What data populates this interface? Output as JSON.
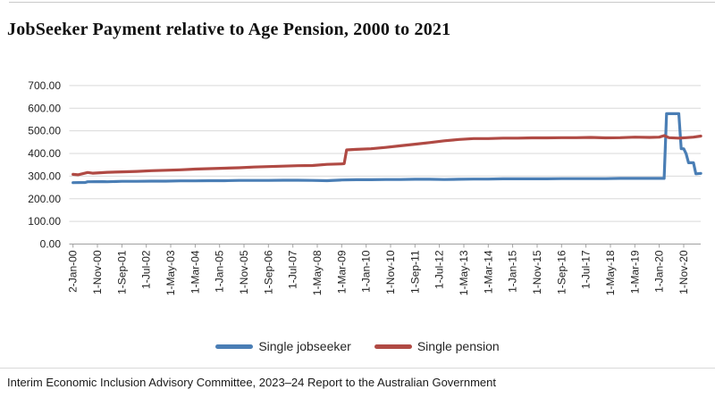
{
  "page": {
    "title": "JobSeeker Payment relative to Age Pension, 2000 to 2021"
  },
  "footer": {
    "text": "Interim Economic Inclusion Advisory Committee, 2023–24 Report to the Australian Government"
  },
  "chart_data": {
    "type": "line",
    "title": "JobSeeker Payment relative to Age Pension, 2000 to 2021",
    "xlabel": "",
    "ylabel": "",
    "ylim": [
      0,
      700
    ],
    "grid": true,
    "legend_position": "bottom",
    "y_axis": {
      "ticks": [
        {
          "value": 0,
          "label": "0.00"
        },
        {
          "value": 100,
          "label": "100.00"
        },
        {
          "value": 200,
          "label": "200.00"
        },
        {
          "value": 300,
          "label": "300.00"
        },
        {
          "value": 400,
          "label": "400.00"
        },
        {
          "value": 500,
          "label": "500.00"
        },
        {
          "value": 600,
          "label": "600.00"
        },
        {
          "value": 700,
          "label": "700.00"
        }
      ]
    },
    "x_axis": {
      "start": "Jan-2000",
      "end": "Jun-2021",
      "tick_interval_months": 10,
      "tick_labels": [
        "2-Jan-00",
        "1-Nov-00",
        "1-Sep-01",
        "1-Jul-02",
        "1-May-03",
        "1-Mar-04",
        "1-Jan-05",
        "1-Nov-05",
        "1-Sep-06",
        "1-Jul-07",
        "1-May-08",
        "1-Mar-09",
        "1-Jan-10",
        "1-Nov-10",
        "1-Sep-11",
        "1-Jul-12",
        "1-May-13",
        "1-Mar-14",
        "1-Jan-15",
        "1-Nov-15",
        "1-Sep-16",
        "1-Jul-17",
        "1-May-18",
        "1-Mar-19",
        "1-Jan-20",
        "1-Nov-20"
      ]
    },
    "series": [
      {
        "name": "Single jobseeker",
        "color": "#4a7eb5",
        "points": [
          [
            "Jan-00",
            271
          ],
          [
            "Jun-00",
            272
          ],
          [
            "Jul-00",
            275
          ],
          [
            "Jan-01",
            276
          ],
          [
            "Mar-01",
            275
          ],
          [
            "Sep-01",
            277
          ],
          [
            "Mar-02",
            277
          ],
          [
            "Sep-02",
            278
          ],
          [
            "Mar-03",
            278
          ],
          [
            "Sep-03",
            279
          ],
          [
            "Mar-04",
            279
          ],
          [
            "Sep-04",
            280
          ],
          [
            "Mar-05",
            280
          ],
          [
            "Sep-05",
            281
          ],
          [
            "Mar-06",
            281
          ],
          [
            "Sep-06",
            281
          ],
          [
            "Mar-07",
            282
          ],
          [
            "Sep-07",
            282
          ],
          [
            "Mar-08",
            281
          ],
          [
            "Sep-08",
            280
          ],
          [
            "Mar-09",
            283
          ],
          [
            "Sep-09",
            284
          ],
          [
            "Mar-10",
            284
          ],
          [
            "Sep-10",
            285
          ],
          [
            "Mar-11",
            285
          ],
          [
            "Sep-11",
            286
          ],
          [
            "Mar-12",
            286
          ],
          [
            "Sep-12",
            285
          ],
          [
            "Mar-13",
            286
          ],
          [
            "Sep-13",
            287
          ],
          [
            "Mar-14",
            287
          ],
          [
            "Sep-14",
            288
          ],
          [
            "Mar-15",
            288
          ],
          [
            "Sep-15",
            288
          ],
          [
            "Mar-16",
            288
          ],
          [
            "Sep-16",
            289
          ],
          [
            "Mar-17",
            289
          ],
          [
            "Sep-17",
            289
          ],
          [
            "Mar-18",
            289
          ],
          [
            "Sep-18",
            290
          ],
          [
            "Mar-19",
            290
          ],
          [
            "Sep-19",
            290
          ],
          [
            "Mar-20",
            290
          ],
          [
            "Apr-20",
            576
          ],
          [
            "Sep-20",
            576
          ],
          [
            "Oct-20",
            421
          ],
          [
            "Nov-20",
            421
          ],
          [
            "Dec-20",
            399
          ],
          [
            "Jan-21",
            359
          ],
          [
            "Mar-21",
            359
          ],
          [
            "Apr-21",
            310
          ],
          [
            "Jun-21",
            312
          ]
        ]
      },
      {
        "name": "Single pension",
        "color": "#b04a44",
        "points": [
          [
            "Jan-00",
            308
          ],
          [
            "Mar-00",
            306
          ],
          [
            "Jul-00",
            316
          ],
          [
            "Sep-00",
            313
          ],
          [
            "Mar-01",
            317
          ],
          [
            "Sep-01",
            319
          ],
          [
            "Mar-02",
            321
          ],
          [
            "Sep-02",
            324
          ],
          [
            "Mar-03",
            326
          ],
          [
            "Sep-03",
            328
          ],
          [
            "Mar-04",
            331
          ],
          [
            "Sep-04",
            333
          ],
          [
            "Mar-05",
            335
          ],
          [
            "Sep-05",
            337
          ],
          [
            "Mar-06",
            340
          ],
          [
            "Sep-06",
            342
          ],
          [
            "Mar-07",
            344
          ],
          [
            "Sep-07",
            346
          ],
          [
            "Mar-08",
            347
          ],
          [
            "Sep-08",
            352
          ],
          [
            "Mar-09",
            354
          ],
          [
            "Apr-09",
            355
          ],
          [
            "May-09",
            416
          ],
          [
            "Sep-09",
            418
          ],
          [
            "Mar-10",
            421
          ],
          [
            "Sep-10",
            427
          ],
          [
            "Mar-11",
            434
          ],
          [
            "Sep-11",
            441
          ],
          [
            "Mar-12",
            448
          ],
          [
            "Sep-12",
            456
          ],
          [
            "Mar-13",
            462
          ],
          [
            "Sep-13",
            466
          ],
          [
            "Mar-14",
            466
          ],
          [
            "Sep-14",
            468
          ],
          [
            "Mar-15",
            468
          ],
          [
            "Sep-15",
            469
          ],
          [
            "Mar-16",
            469
          ],
          [
            "Sep-16",
            470
          ],
          [
            "Mar-17",
            470
          ],
          [
            "Sep-17",
            471
          ],
          [
            "Mar-18",
            469
          ],
          [
            "Sep-18",
            470
          ],
          [
            "Mar-19",
            472
          ],
          [
            "Sep-19",
            471
          ],
          [
            "Jan-20",
            472
          ],
          [
            "Mar-20",
            479
          ],
          [
            "May-20",
            470
          ],
          [
            "Sep-20",
            468
          ],
          [
            "Dec-20",
            470
          ],
          [
            "Mar-21",
            472
          ],
          [
            "Jun-21",
            477
          ]
        ]
      }
    ]
  }
}
